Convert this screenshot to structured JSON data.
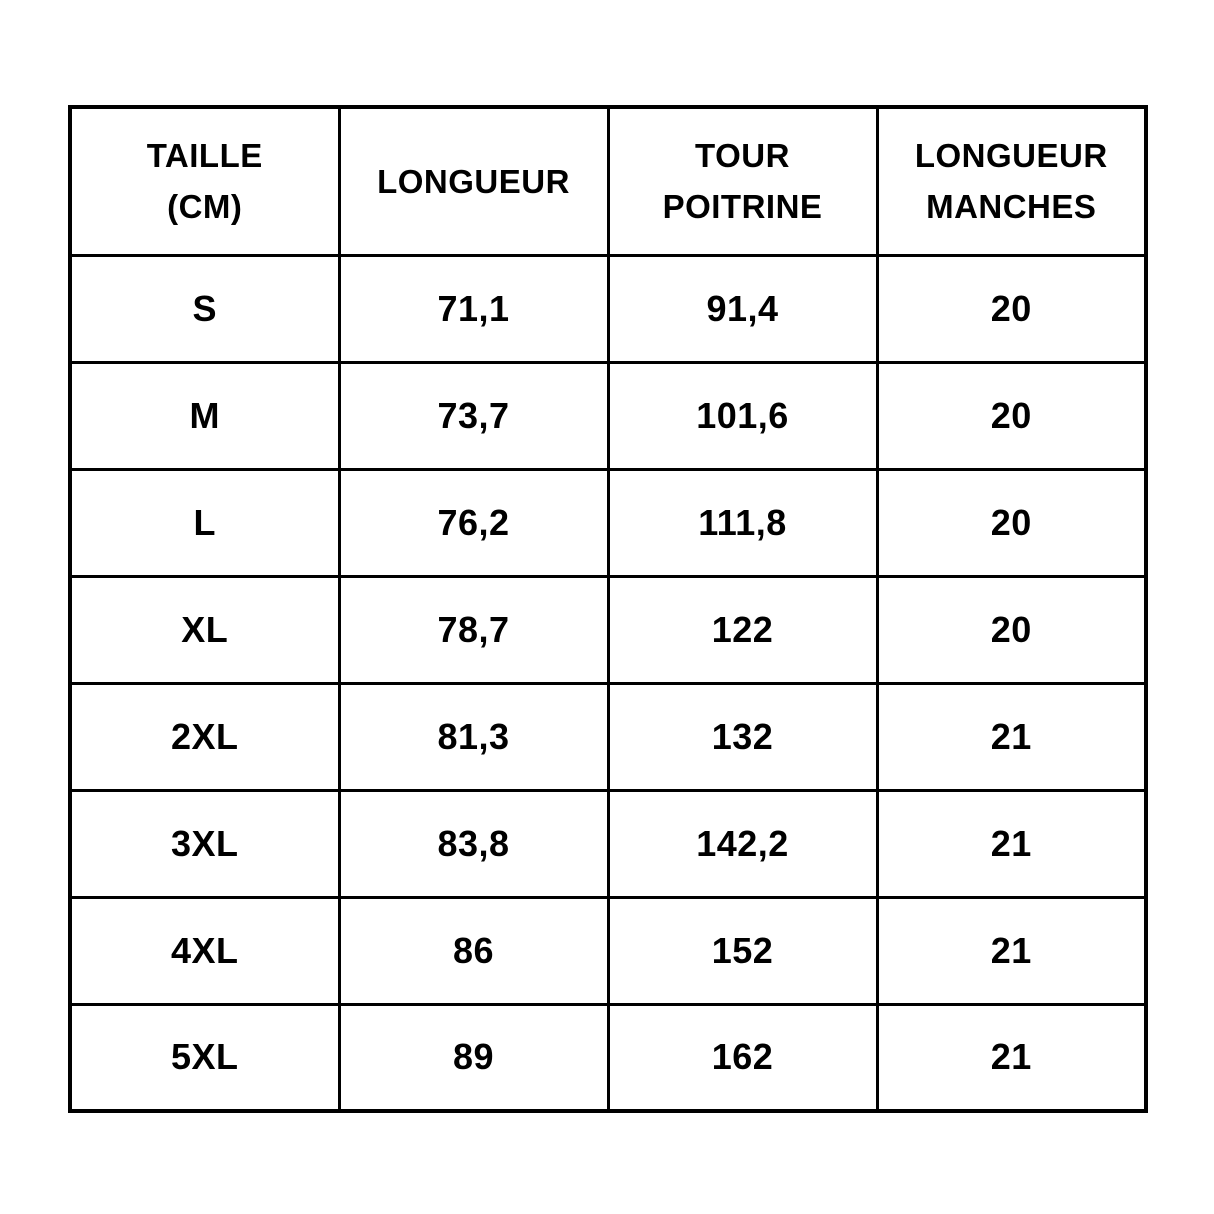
{
  "chart_data": {
    "type": "table",
    "title": "",
    "columns": [
      "TAILLE (CM)",
      "LONGUEUR",
      "TOUR POITRINE",
      "LONGUEUR MANCHES"
    ],
    "columns_display": [
      "TAILLE\n(CM)",
      "LONGUEUR",
      "TOUR\nPOITRINE",
      "LONGUEUR\nMANCHES"
    ],
    "rows": [
      [
        "S",
        "71,1",
        "91,4",
        "20"
      ],
      [
        "M",
        "73,7",
        "101,6",
        "20"
      ],
      [
        "L",
        "76,2",
        "111,8",
        "20"
      ],
      [
        "XL",
        "78,7",
        "122",
        "20"
      ],
      [
        "2XL",
        "81,3",
        "132",
        "21"
      ],
      [
        "3XL",
        "83,8",
        "142,2",
        "21"
      ],
      [
        "4XL",
        "86",
        "152",
        "21"
      ],
      [
        "5XL",
        "89",
        "162",
        "21"
      ]
    ],
    "decimal_separator": ",",
    "colors": {
      "background": "#ffffff",
      "border": "#000000",
      "text": "#000000"
    }
  }
}
